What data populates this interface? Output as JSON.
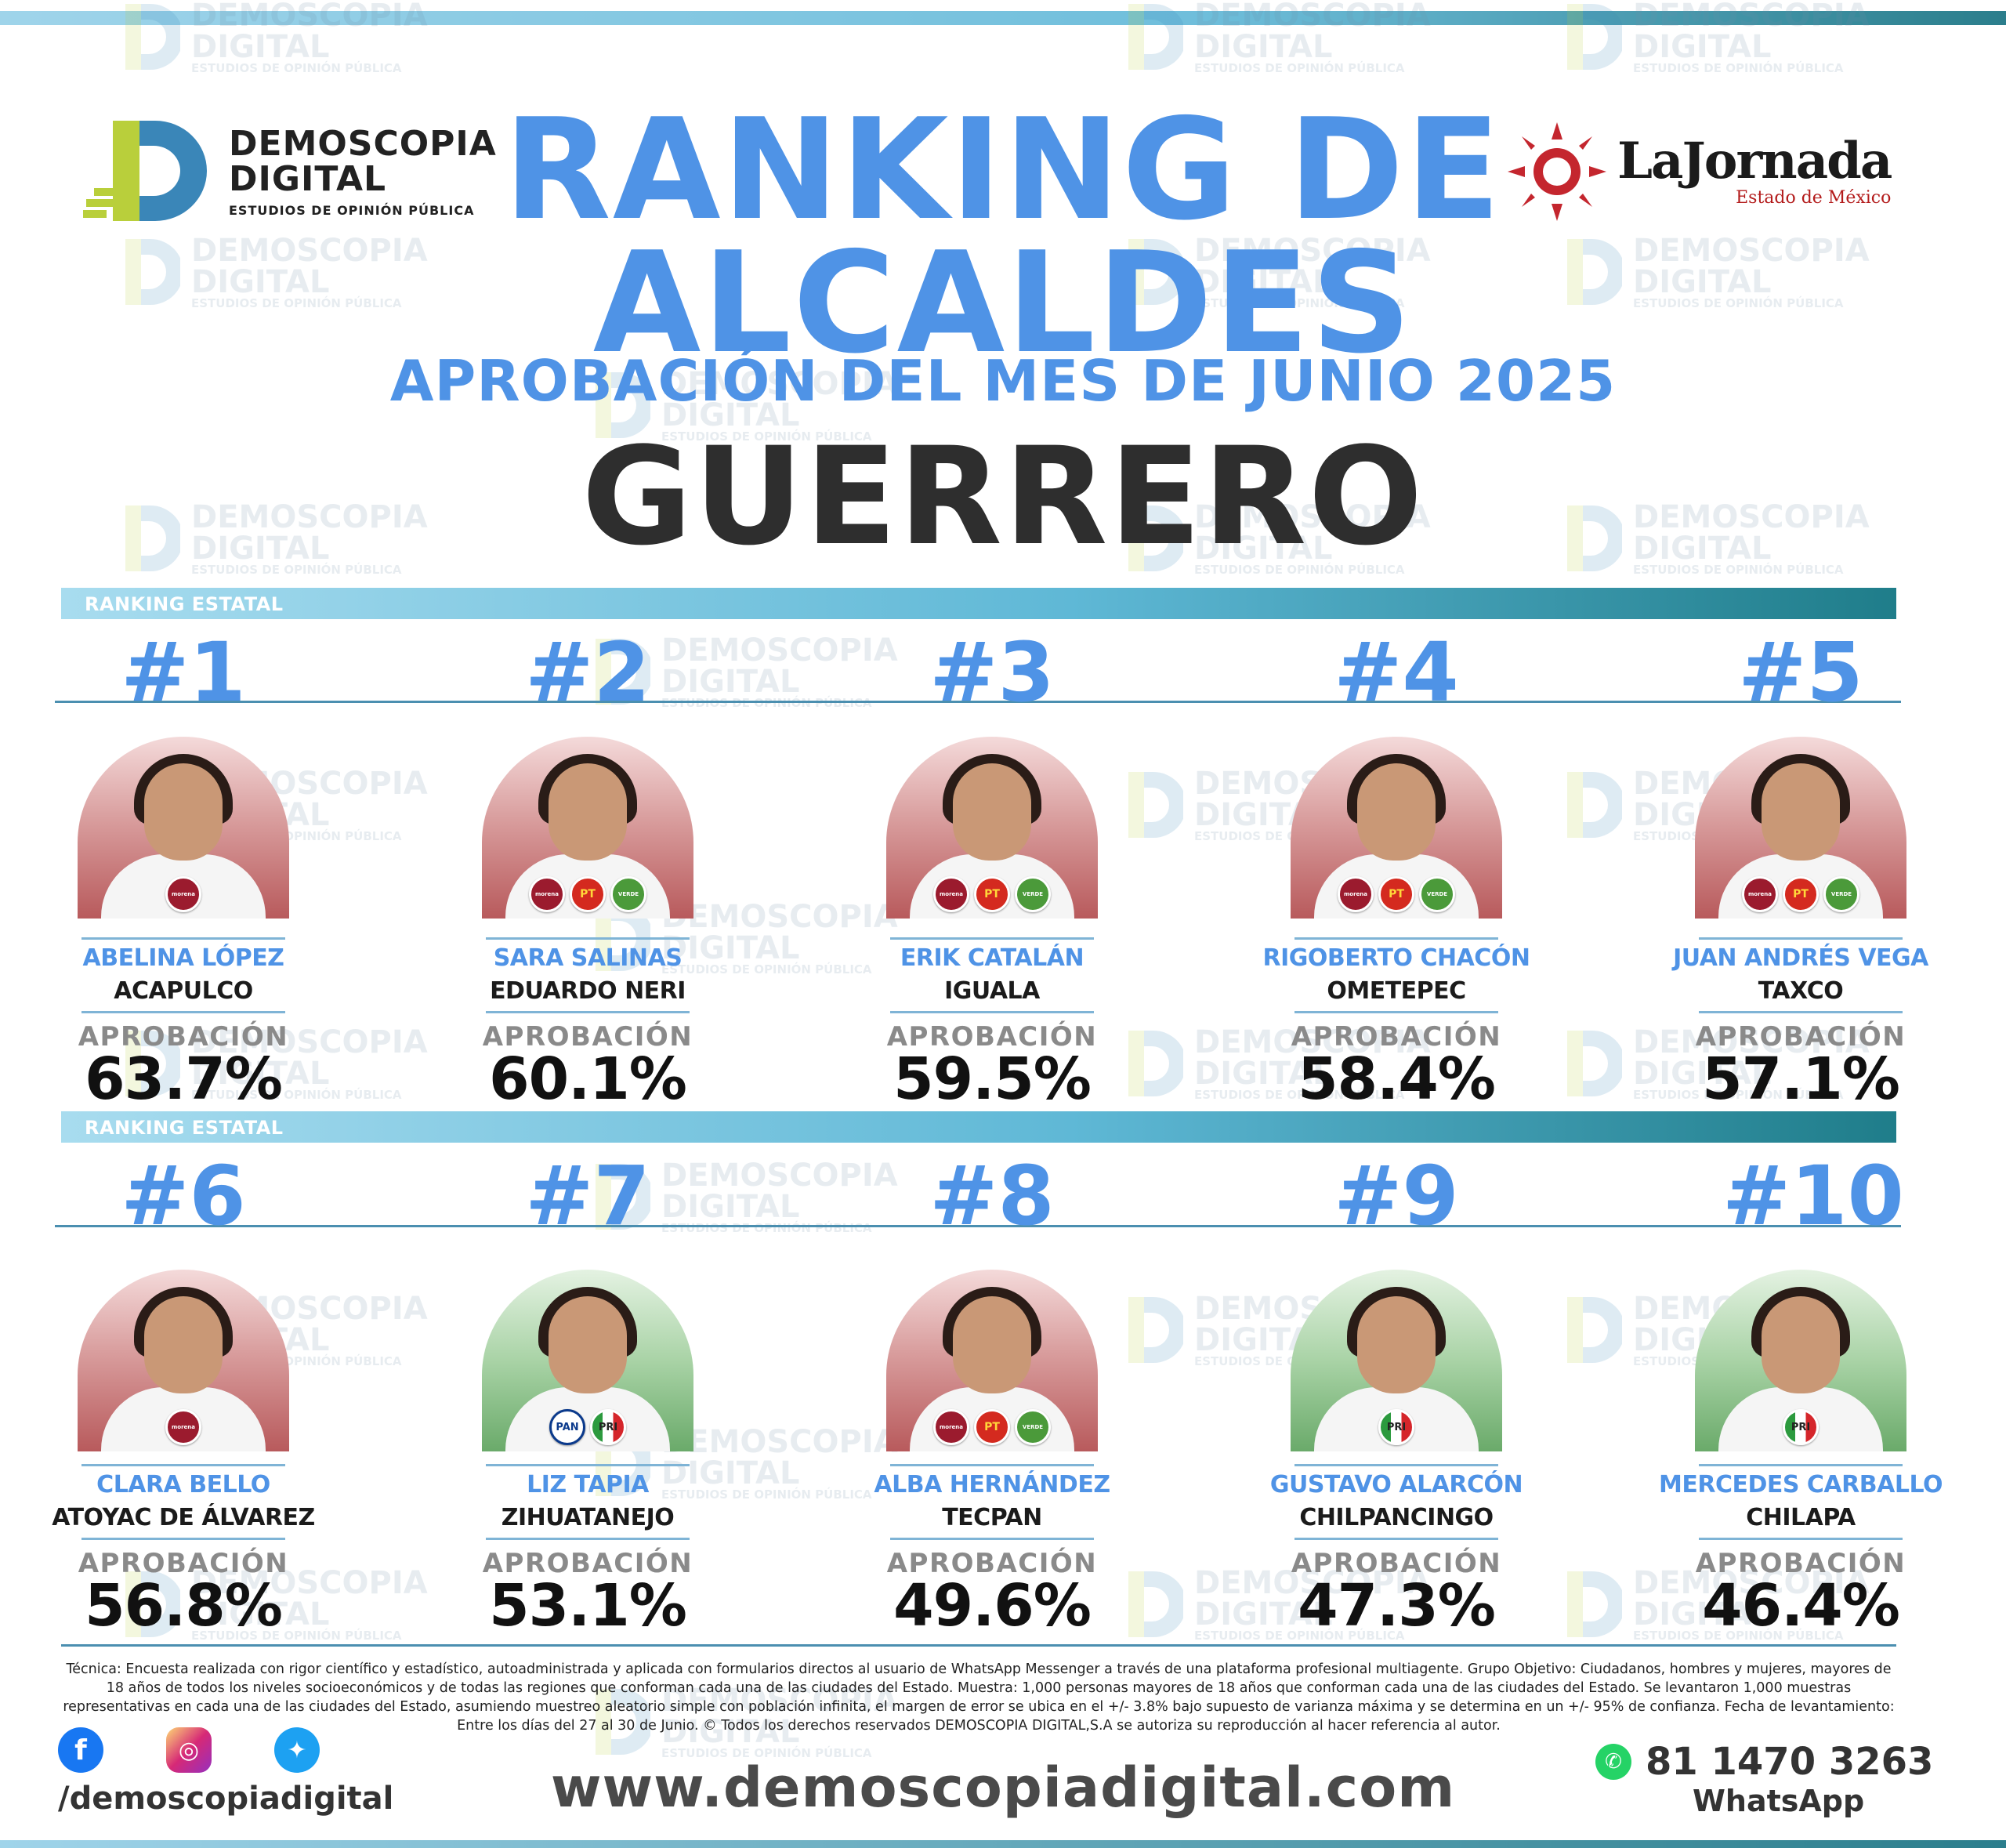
{
  "header": {
    "title_line1": "RANKING DE",
    "title_line2": "ALCALDES",
    "subtitle": "APROBACIÓN DEL MES DE JUNIO 2025",
    "state": "GUERRERO"
  },
  "logos": {
    "demoscopia": {
      "line1": "DEMOSCOPIA",
      "line2": "DIGITAL",
      "tagline": "ESTUDIOS DE OPINIÓN PÚBLICA"
    },
    "lajornada": {
      "name": "LaJornada",
      "sub": "Estado de México"
    }
  },
  "watermark": {
    "line1": "DEMOSCOPIA",
    "line2": "DIGITAL",
    "line3": "ESTUDIOS DE OPINIÓN PÚBLICA"
  },
  "ranking_label": "RANKING ESTATAL",
  "approval_label": "APROBACIÓN",
  "colors": {
    "accent_blue": "#4f93e6",
    "bar_dark": "#1f7d8a",
    "bar_light": "#a8dcef"
  },
  "mayors": [
    {
      "rank": "#1",
      "name": "ABELINA LÓPEZ",
      "city": "ACAPULCO",
      "approval": "63.7%",
      "approval_value": 63.7,
      "bg": "red",
      "parties": [
        "morena"
      ]
    },
    {
      "rank": "#2",
      "name": "SARA SALINAS",
      "city": "EDUARDO NERI",
      "approval": "60.1%",
      "approval_value": 60.1,
      "bg": "red",
      "parties": [
        "morena",
        "PT",
        "VERDE"
      ]
    },
    {
      "rank": "#3",
      "name": "ERIK CATALÁN",
      "city": "IGUALA",
      "approval": "59.5%",
      "approval_value": 59.5,
      "bg": "red",
      "parties": [
        "morena",
        "PT",
        "VERDE"
      ]
    },
    {
      "rank": "#4",
      "name": "RIGOBERTO CHACÓN",
      "city": "OMETEPEC",
      "approval": "58.4%",
      "approval_value": 58.4,
      "bg": "red",
      "parties": [
        "morena",
        "PT",
        "VERDE"
      ]
    },
    {
      "rank": "#5",
      "name": "JUAN ANDRÉS VEGA",
      "city": "TAXCO",
      "approval": "57.1%",
      "approval_value": 57.1,
      "bg": "red",
      "parties": [
        "morena",
        "PT",
        "VERDE"
      ]
    },
    {
      "rank": "#6",
      "name": "CLARA BELLO",
      "city": "ATOYAC DE ÁLVAREZ",
      "approval": "56.8%",
      "approval_value": 56.8,
      "bg": "red",
      "parties": [
        "morena"
      ]
    },
    {
      "rank": "#7",
      "name": "LIZ TAPIA",
      "city": "ZIHUATANEJO",
      "approval": "53.1%",
      "approval_value": 53.1,
      "bg": "green",
      "parties": [
        "PAN",
        "PRI"
      ]
    },
    {
      "rank": "#8",
      "name": "ALBA HERNÁNDEZ",
      "city": "TECPAN",
      "approval": "49.6%",
      "approval_value": 49.6,
      "bg": "red",
      "parties": [
        "morena",
        "PT",
        "VERDE"
      ]
    },
    {
      "rank": "#9",
      "name": "GUSTAVO ALARCÓN",
      "city": "CHILPANCINGO",
      "approval": "47.3%",
      "approval_value": 47.3,
      "bg": "green",
      "parties": [
        "PRI"
      ]
    },
    {
      "rank": "#10",
      "name": "MERCEDES CARBALLO",
      "city": "CHILAPA",
      "approval": "46.4%",
      "approval_value": 46.4,
      "bg": "green",
      "parties": [
        "PRI"
      ]
    }
  ],
  "footer": {
    "tecnica": "Técnica: Encuesta realizada con rigor científico y estadístico, autoadministrada y aplicada con formularios directos al usuario de WhatsApp Messenger a través de una plataforma profesional multiagente. Grupo Objetivo: Ciudadanos, hombres y mujeres, mayores de 18 años de todos los niveles socioeconómicos y de todas las regiones que conforman cada una de las ciudades del Estado. Muestra: 1,000 personas mayores de 18 años que conforman cada una de las ciudades del Estado. Se levantaron 1,000 muestras representativas en cada una de las ciudades del Estado, asumiendo muestreo aleatorio simple con población infinita, el margen de error se ubica en el +/- 3.8% bajo supuesto de varianza máxima y se determina en un +/- 95% de confianza. Fecha de levantamiento: Entre los días del 27 al 30 de Junio. © Todos los derechos reservados DEMOSCOPIA DIGITAL,S.A se autoriza su reproducción al hacer referencia al autor.",
    "handle": "/demoscopiadigital",
    "website": "www.demoscopiadigital.com",
    "whatsapp_number": "81 1470 3263",
    "whatsapp_label": "WhatsApp",
    "social_icons": [
      "facebook-icon",
      "instagram-icon",
      "twitter-icon"
    ]
  }
}
